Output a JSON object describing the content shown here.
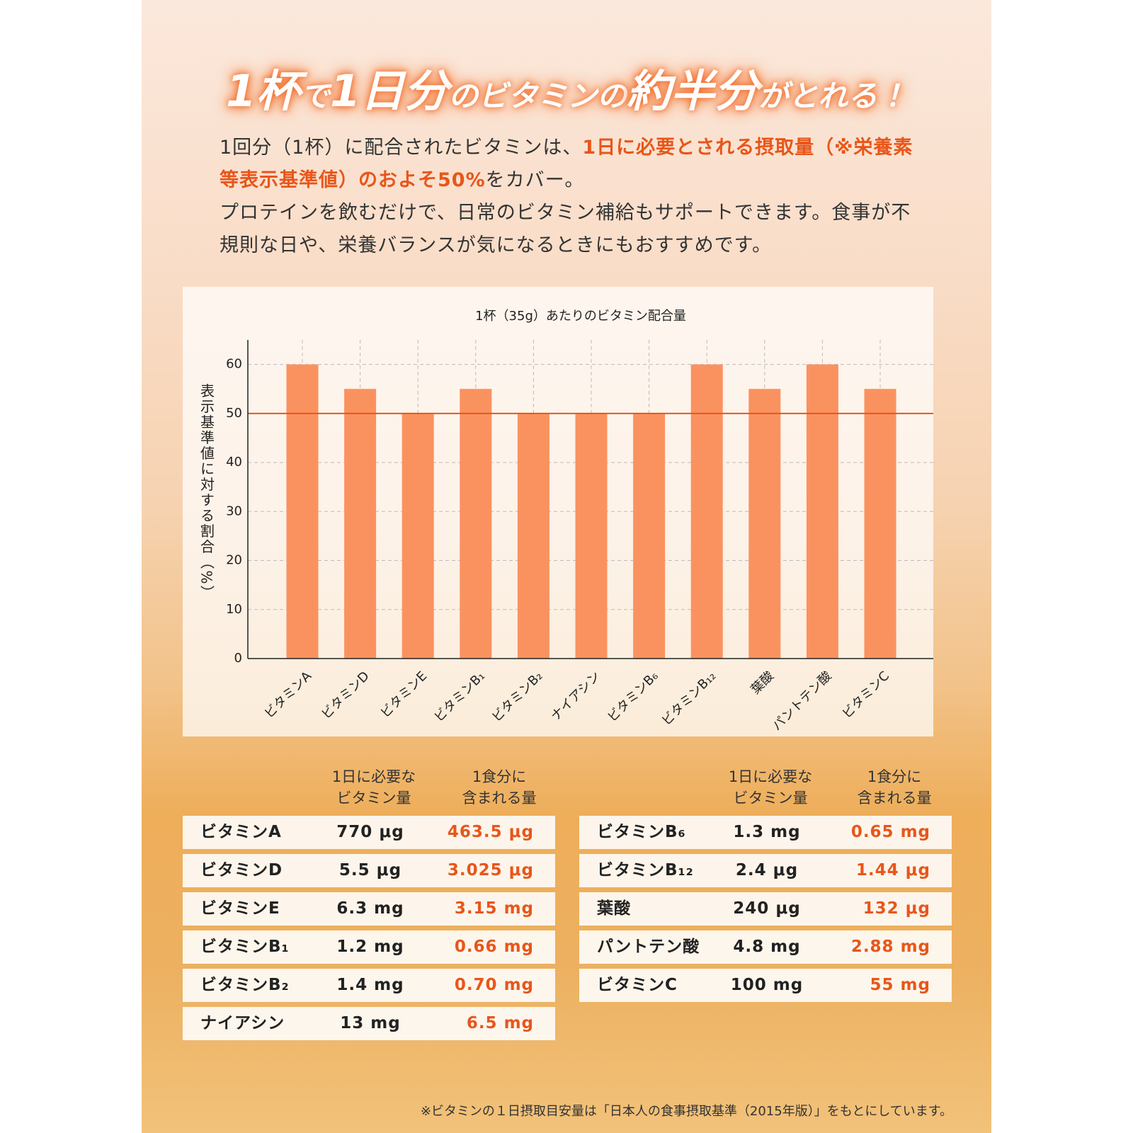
{
  "headline": [
    "1杯",
    "で",
    "1日分",
    "のビタミンの",
    "約半分",
    "がとれる！"
  ],
  "intro": {
    "p1": [
      "1回分（1杯）に配合されたビタミンは、",
      "1日に必要とされる摂取量（※栄養素等表示基準値）のおよそ50%",
      "をカバー。"
    ],
    "p2": "プロテインを飲むだけで、日常のビタミン補給もサポートできます。食事が不規則な日や、栄養バランスが気になるときにもおすすめです。"
  },
  "chart_data": {
    "type": "bar",
    "title": "1杯（35g）あたりのビタミン配合量",
    "y_label": "表示基準値に対する割合（%）",
    "categories": [
      "ビタミンA",
      "ビタミンD",
      "ビタミンE",
      "ビタミンB₁",
      "ビタミンB₂",
      "ナイアシン",
      "ビタミンB₆",
      "ビタミンB₁₂",
      "葉酸",
      "パントテン酸",
      "ビタミンC"
    ],
    "values": [
      60,
      55,
      50,
      55,
      50,
      50,
      50,
      60,
      55,
      60,
      55
    ],
    "color": "#fa9260",
    "reference_line": 50,
    "reference_color": "#e8561a",
    "ylim": [
      0,
      65
    ],
    "yticks": [
      0,
      10,
      20,
      30,
      40,
      50,
      60
    ],
    "grid": true
  },
  "tables": [
    {
      "headers": [
        [
          "1日に必要な",
          "ビタミン量"
        ],
        [
          "1食分に",
          "含まれる量"
        ]
      ],
      "rows": [
        [
          "ビタミンA",
          "770 μg",
          "463.5 μg"
        ],
        [
          "ビタミンD",
          "5.5 μg",
          "3.025 μg"
        ],
        [
          "ビタミンE",
          "6.3 mg",
          "3.15 mg"
        ],
        [
          "ビタミンB₁",
          "1.2 mg",
          "0.66 mg"
        ],
        [
          "ビタミンB₂",
          "1.4 mg",
          "0.70 mg"
        ],
        [
          "ナイアシン",
          "13 mg",
          "6.5 mg"
        ]
      ]
    },
    {
      "headers": [
        [
          "1日に必要な",
          "ビタミン量"
        ],
        [
          "1食分に",
          "含まれる量"
        ]
      ],
      "rows": [
        [
          "ビタミンB₆",
          "1.3 mg",
          "0.65 mg"
        ],
        [
          "ビタミンB₁₂",
          "2.4 μg",
          "1.44 μg"
        ],
        [
          "葉酸",
          "240 μg",
          "132 μg"
        ],
        [
          "パントテン酸",
          "4.8 mg",
          "2.88 mg"
        ],
        [
          "ビタミンC",
          "100 mg",
          "55 mg"
        ]
      ]
    }
  ],
  "footnote": "※ビタミンの１日摂取目安量は「日本人の食事摂取基準（2015年版）」をもとにしています。"
}
